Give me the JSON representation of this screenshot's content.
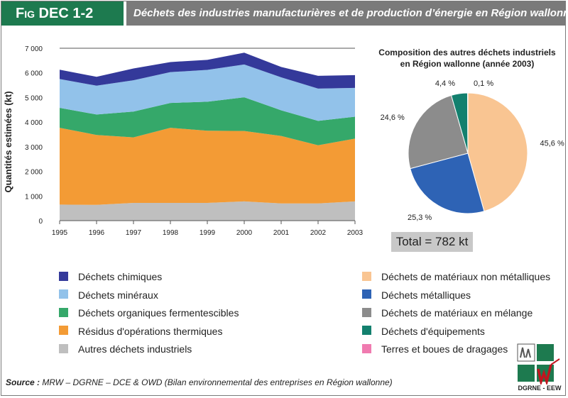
{
  "header": {
    "code_prefix": "F",
    "code_small": "IG",
    "code_rest": " DEC 1-2",
    "title": "Déchets des industries manufacturières et de production d’énergie en Région wallonne"
  },
  "chart_data": [
    {
      "type": "area",
      "stacked": true,
      "ylabel": "Quantités estimées (kt)",
      "ylim": [
        0,
        7000
      ],
      "yticks": [
        "0",
        "1 000",
        "2 000",
        "3 000",
        "4 000",
        "5 000",
        "6 000",
        "7 000"
      ],
      "x": [
        "1995",
        "1996",
        "1997",
        "1998",
        "1999",
        "2000",
        "2001",
        "2002",
        "2003"
      ],
      "series": [
        {
          "name": "Autres déchets industriels",
          "color": "#bfbfbf",
          "values": [
            650,
            640,
            720,
            720,
            720,
            780,
            700,
            700,
            780
          ]
        },
        {
          "name": "Résidus d'opérations thermiques",
          "color": "#f39b35",
          "values": [
            3120,
            2840,
            2660,
            3050,
            2930,
            2860,
            2740,
            2360,
            2550
          ]
        },
        {
          "name": "Déchets organiques fermentescibles",
          "color": "#35a86a",
          "values": [
            810,
            830,
            1050,
            1010,
            1180,
            1370,
            1040,
            990,
            890
          ]
        },
        {
          "name": "Déchets minéraux",
          "color": "#92c2ea",
          "values": [
            1170,
            1170,
            1270,
            1250,
            1290,
            1330,
            1340,
            1310,
            1170
          ]
        },
        {
          "name": "Déchets chimiques",
          "color": "#34399a",
          "values": [
            380,
            360,
            480,
            410,
            410,
            480,
            420,
            520,
            520
          ]
        }
      ],
      "grid": false,
      "legend_position": "bottom-left"
    },
    {
      "type": "pie",
      "title_line1": "Composition des autres déchets industriels",
      "title_line2": "en Région wallonne (année 2003)",
      "slices": [
        {
          "name": "Déchets de matériaux non métalliques",
          "value": 45.6,
          "label": "45,6 %",
          "color": "#f9c592"
        },
        {
          "name": "Déchets métalliques",
          "value": 25.3,
          "label": "25,3 %",
          "color": "#2e63b5"
        },
        {
          "name": "Déchets de matériaux en mélange",
          "value": 24.6,
          "label": "24,6 %",
          "color": "#8c8c8c"
        },
        {
          "name": "Déchets d'équipements",
          "value": 4.4,
          "label": "4,4 %",
          "color": "#13806e"
        },
        {
          "name": "Terres et boues de dragages",
          "value": 0.1,
          "label": "0,1 %",
          "color": "#f07bb0"
        }
      ],
      "total": "Total = 782 kt",
      "legend_position": "bottom-right"
    }
  ],
  "legend_left": [
    {
      "label": "Déchets chimiques",
      "color": "#34399a"
    },
    {
      "label": "Déchets minéraux",
      "color": "#92c2ea"
    },
    {
      "label": "Déchets organiques fermentescibles",
      "color": "#35a86a"
    },
    {
      "label": "Résidus d'opérations thermiques",
      "color": "#f39b35"
    },
    {
      "label": "Autres déchets industriels",
      "color": "#bfbfbf"
    }
  ],
  "legend_right": [
    {
      "label": "Déchets de matériaux non métalliques",
      "color": "#f9c592"
    },
    {
      "label": "Déchets métalliques",
      "color": "#2e63b5"
    },
    {
      "label": "Déchets de matériaux en mélange",
      "color": "#8c8c8c"
    },
    {
      "label": "Déchets d'équipements",
      "color": "#13806e"
    },
    {
      "label": "Terres et boues de dragages",
      "color": "#f07bb0"
    }
  ],
  "source": {
    "prefix": "Source :",
    "text": " MRW – DGRNE – DCE & OWD (Bilan environnemental des entreprises en Région wallonne)"
  },
  "logo": {
    "caption": "DGRNE - EEW"
  }
}
